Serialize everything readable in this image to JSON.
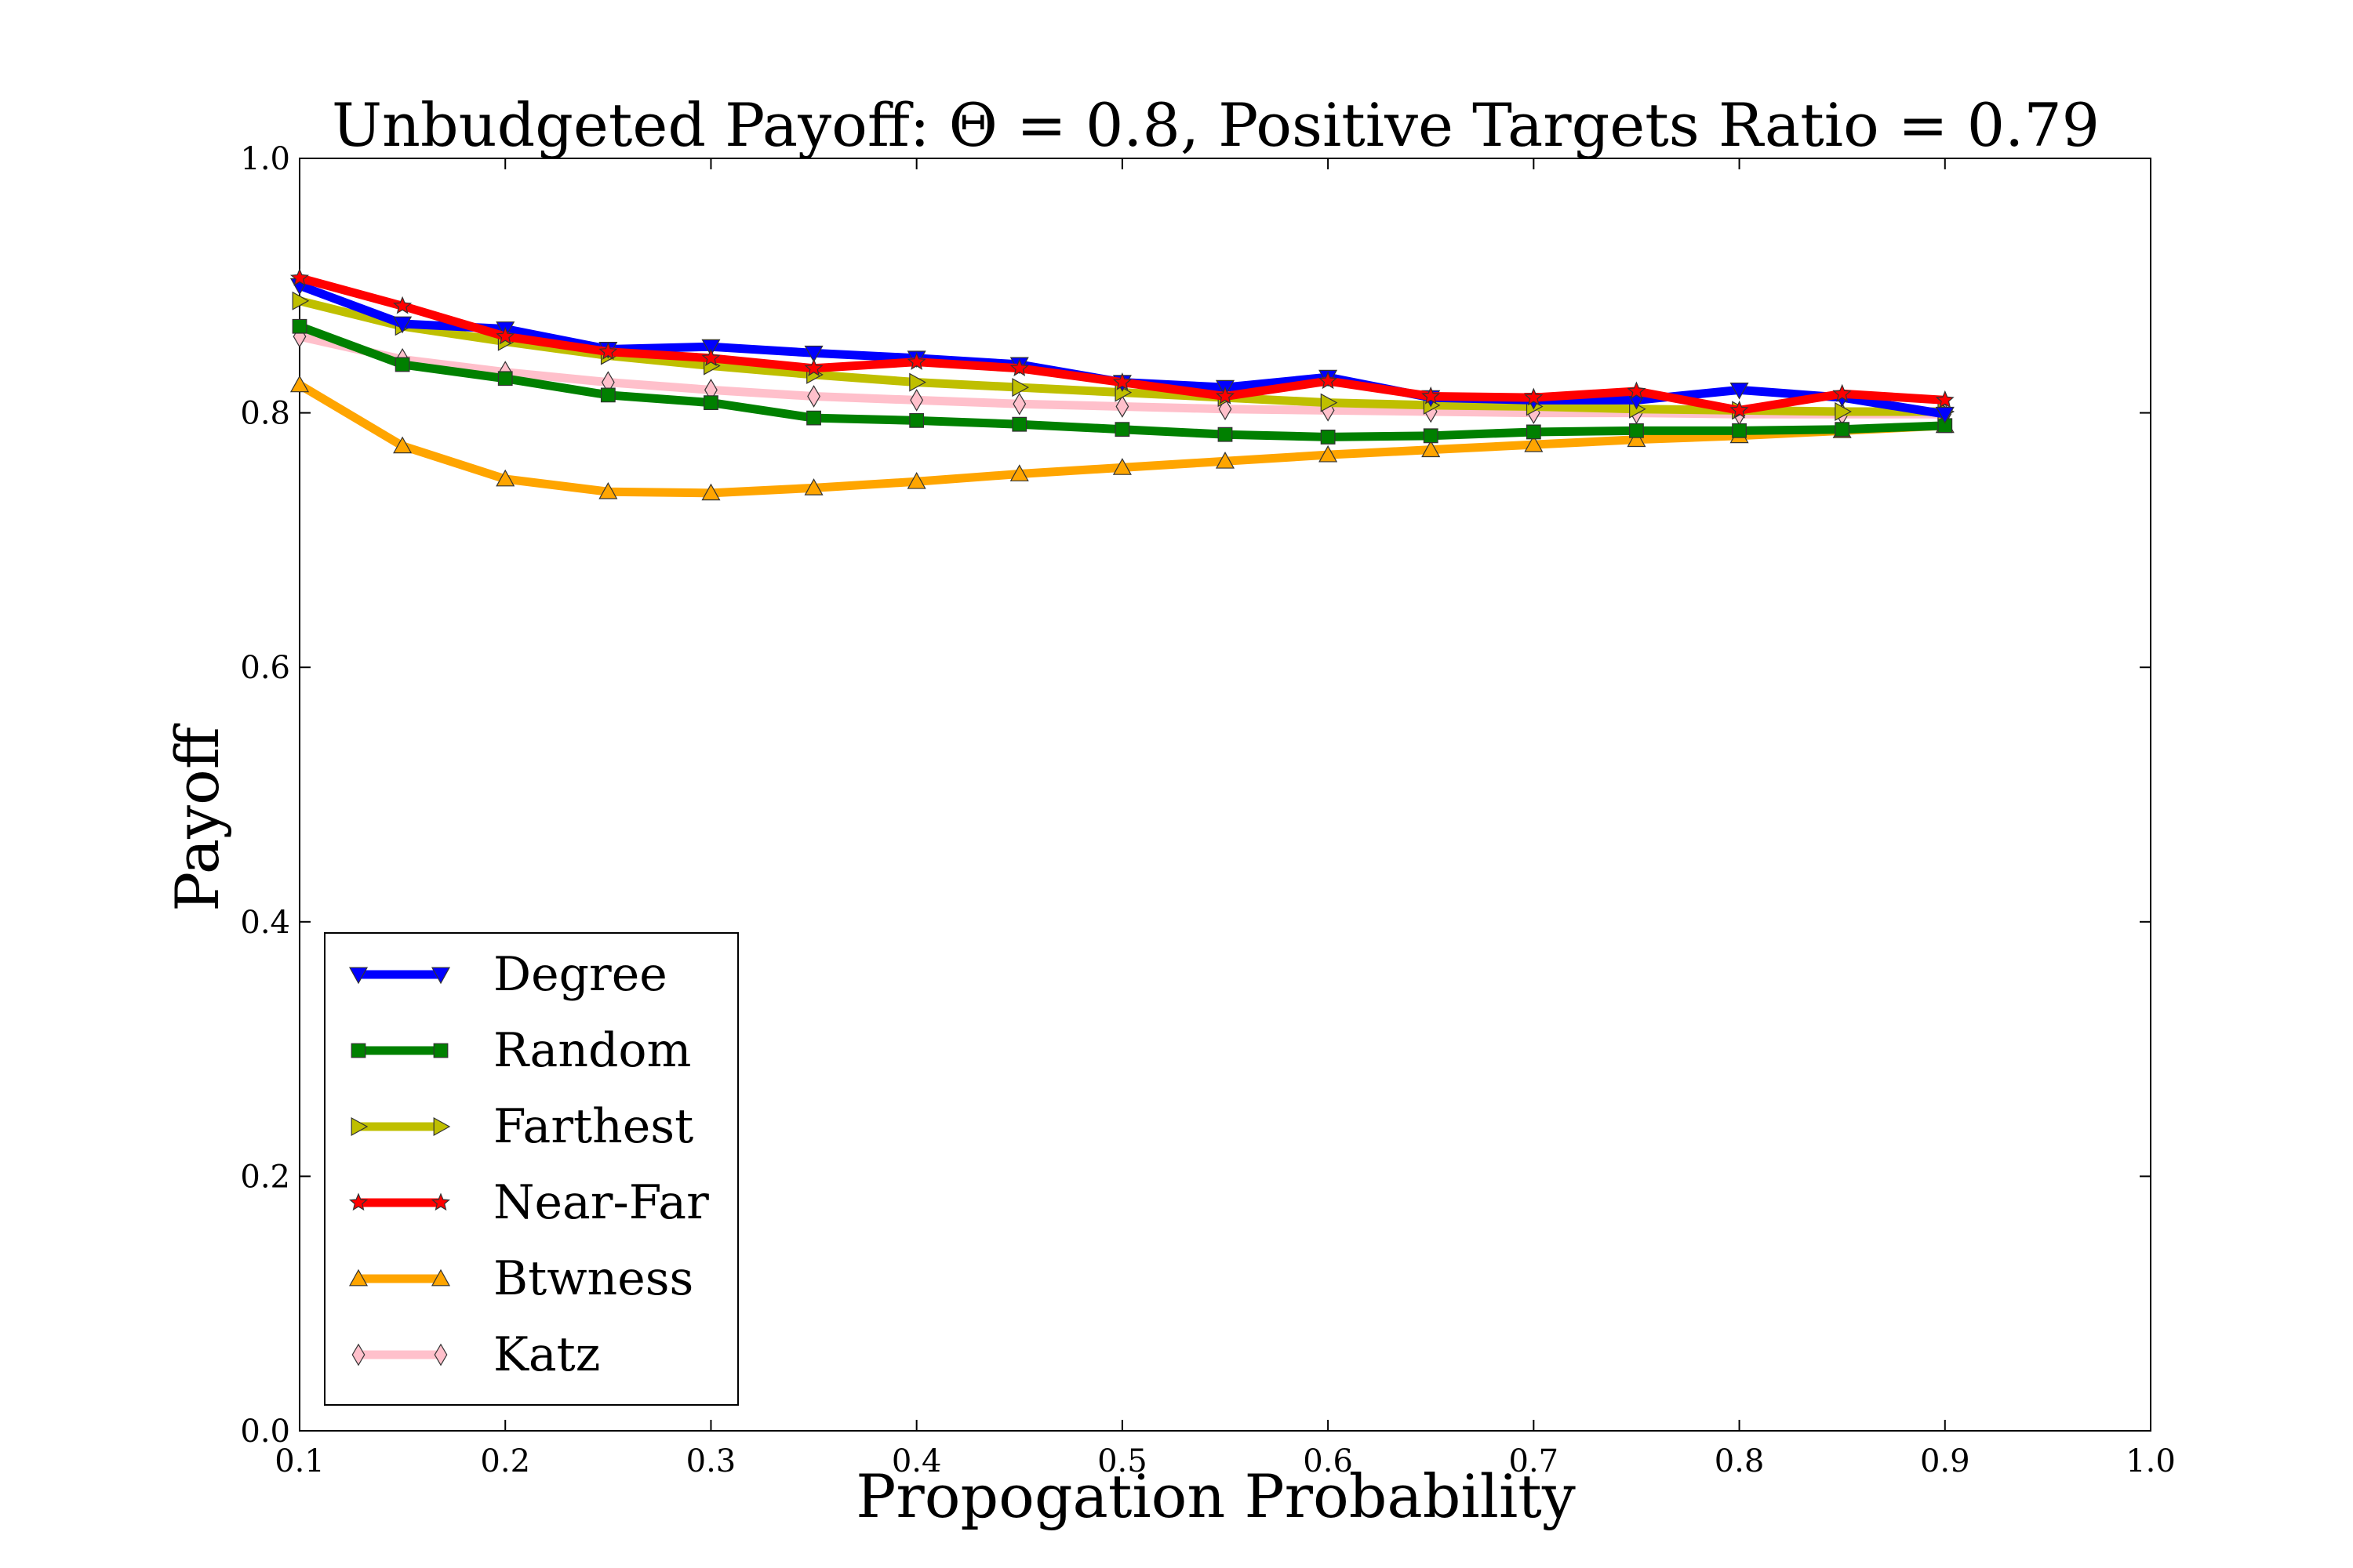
{
  "chart_data": {
    "type": "line",
    "title": "Unbudgeted Payoff: Θ = 0.8, Positive Targets Ratio = 0.79",
    "xlabel": "Propogation Probability",
    "ylabel": "Payoff",
    "xlim": [
      0.1,
      1.0
    ],
    "ylim": [
      0.0,
      1.0
    ],
    "xticks": [
      "0.1",
      "0.2",
      "0.3",
      "0.4",
      "0.5",
      "0.6",
      "0.7",
      "0.8",
      "0.9",
      "1.0"
    ],
    "yticks": [
      "0.0",
      "0.2",
      "0.4",
      "0.6",
      "0.8",
      "1.0"
    ],
    "grid": false,
    "legend_position": "lower-left",
    "x": [
      0.1,
      0.15,
      0.2,
      0.25,
      0.3,
      0.35,
      0.4,
      0.45,
      0.5,
      0.55,
      0.6,
      0.65,
      0.7,
      0.75,
      0.8,
      0.85,
      0.9
    ],
    "series": [
      {
        "name": "Degree",
        "color": "#0000ff",
        "marker": "triangle-down",
        "values": [
          0.9,
          0.87,
          0.866,
          0.85,
          0.852,
          0.847,
          0.843,
          0.838,
          0.824,
          0.82,
          0.828,
          0.812,
          0.81,
          0.81,
          0.818,
          0.812,
          0.799
        ]
      },
      {
        "name": "Random",
        "color": "#008000",
        "marker": "square",
        "values": [
          0.868,
          0.838,
          0.827,
          0.814,
          0.808,
          0.796,
          0.794,
          0.791,
          0.787,
          0.783,
          0.781,
          0.782,
          0.785,
          0.786,
          0.786,
          0.787,
          0.79
        ]
      },
      {
        "name": "Farthest",
        "color": "#bfbf00",
        "marker": "triangle-right",
        "values": [
          0.888,
          0.868,
          0.856,
          0.845,
          0.837,
          0.83,
          0.824,
          0.82,
          0.816,
          0.812,
          0.808,
          0.806,
          0.805,
          0.803,
          0.802,
          0.801,
          0.801
        ]
      },
      {
        "name": "Near-Far",
        "color": "#ff0000",
        "marker": "star",
        "values": [
          0.906,
          0.884,
          0.86,
          0.848,
          0.843,
          0.835,
          0.84,
          0.835,
          0.824,
          0.813,
          0.825,
          0.813,
          0.812,
          0.817,
          0.802,
          0.815,
          0.81
        ]
      },
      {
        "name": "Btwness",
        "color": "#ffa500",
        "marker": "triangle-up",
        "values": [
          0.822,
          0.774,
          0.748,
          0.738,
          0.737,
          0.741,
          0.746,
          0.752,
          0.757,
          0.762,
          0.767,
          0.771,
          0.775,
          0.779,
          0.782,
          0.786,
          0.79
        ]
      },
      {
        "name": "Katz",
        "color": "#ffc0cb",
        "marker": "diamond",
        "values": [
          0.86,
          0.842,
          0.832,
          0.824,
          0.818,
          0.813,
          0.81,
          0.807,
          0.805,
          0.803,
          0.802,
          0.801,
          0.8,
          0.8,
          0.799,
          0.799,
          0.799
        ]
      }
    ]
  }
}
